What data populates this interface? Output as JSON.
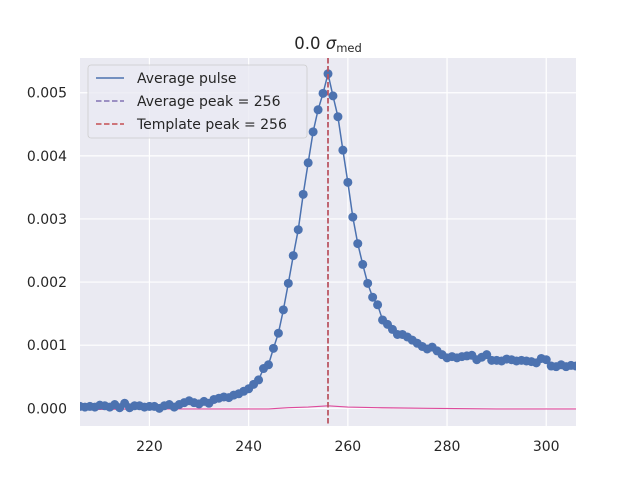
{
  "chart_data": {
    "type": "line",
    "title": {
      "main": "0.0 ",
      "symbol": "σ",
      "subscript": "med"
    },
    "xlabel": "",
    "ylabel": "",
    "xlim": [
      206,
      306
    ],
    "ylim": [
      -0.00028,
      0.00555
    ],
    "xticks": [
      220,
      240,
      260,
      280,
      300
    ],
    "xtick_labels": [
      "220",
      "240",
      "260",
      "280",
      "300"
    ],
    "yticks": [
      0,
      0.001,
      0.002,
      0.003,
      0.004,
      0.005
    ],
    "ytick_labels": [
      "0.000",
      "0.001",
      "0.002",
      "0.003",
      "0.004",
      "0.005"
    ],
    "grid": true,
    "legend_position": "upper-left",
    "legend": [
      {
        "label": "Average pulse",
        "style": "solid",
        "color": "#4c72b0"
      },
      {
        "label": "Average peak = 256",
        "style": "dashed",
        "color": "#8172b3"
      },
      {
        "label": "Template peak = 256",
        "style": "dashed",
        "color": "#c44e52"
      }
    ],
    "series": [
      {
        "name": "Average pulse",
        "color": "#4c72b0",
        "x": [
          206,
          207,
          208,
          209,
          210,
          211,
          212,
          213,
          214,
          215,
          216,
          217,
          218,
          219,
          220,
          221,
          222,
          223,
          224,
          225,
          226,
          227,
          228,
          229,
          230,
          231,
          232,
          233,
          234,
          235,
          236,
          237,
          238,
          239,
          240,
          241,
          242,
          243,
          244,
          245,
          246,
          247,
          248,
          249,
          250,
          251,
          252,
          253,
          254,
          255,
          256,
          257,
          258,
          259,
          260,
          261,
          262,
          263,
          264,
          265,
          266,
          267,
          268,
          269,
          270,
          271,
          272,
          273,
          274,
          275,
          276,
          277,
          278,
          279,
          280,
          281,
          282,
          283,
          284,
          285,
          286,
          287,
          288,
          289,
          290,
          291,
          292,
          293,
          294,
          295,
          296,
          297,
          298,
          299,
          300,
          301,
          302,
          303,
          304,
          305,
          306
        ],
        "values": [
          3e-05,
          2e-05,
          3e-05,
          2e-05,
          5e-05,
          4e-05,
          2e-05,
          6e-05,
          1e-05,
          8e-05,
          1e-05,
          4e-05,
          4e-05,
          2e-05,
          3e-05,
          3e-05,
          0.0,
          4e-05,
          6e-05,
          2e-05,
          6e-05,
          9e-05,
          0.00012,
          9e-05,
          7e-05,
          0.00011,
          8e-05,
          0.00014,
          0.00016,
          0.00018,
          0.00017,
          0.00021,
          0.00023,
          0.00027,
          0.00031,
          0.00038,
          0.00045,
          0.00063,
          0.00069,
          0.00095,
          0.00119,
          0.00156,
          0.00198,
          0.00242,
          0.00283,
          0.00339,
          0.00389,
          0.00438,
          0.00473,
          0.00499,
          0.0053,
          0.00495,
          0.00462,
          0.00409,
          0.00358,
          0.00303,
          0.00261,
          0.00228,
          0.00198,
          0.00176,
          0.00164,
          0.0014,
          0.00133,
          0.00125,
          0.00117,
          0.00117,
          0.00113,
          0.00108,
          0.00103,
          0.00098,
          0.00094,
          0.00097,
          0.00091,
          0.00085,
          0.0008,
          0.00082,
          0.0008,
          0.00082,
          0.00083,
          0.00084,
          0.00077,
          0.00081,
          0.00085,
          0.00076,
          0.00076,
          0.00075,
          0.00078,
          0.00077,
          0.00075,
          0.00076,
          0.00075,
          0.00074,
          0.00072,
          0.00079,
          0.00077,
          0.00067,
          0.00066,
          0.00069,
          0.00066,
          0.00068,
          0.00067
        ]
      },
      {
        "name": "",
        "color": "#dd4b9c",
        "x": [
          206,
          216,
          226,
          236,
          244,
          248,
          252,
          256,
          260,
          266,
          276,
          290,
          306
        ],
        "values": [
          -2e-05,
          -1e-05,
          -1e-05,
          -1e-05,
          -1e-05,
          1e-05,
          2e-05,
          4e-05,
          2e-05,
          1e-05,
          0.0,
          -1e-05,
          -1e-05
        ]
      }
    ],
    "vlines": [
      {
        "x": 256,
        "color": "#8172b3",
        "style": "dashed"
      },
      {
        "x": 256,
        "color": "#c44e52",
        "style": "dashed"
      }
    ]
  }
}
